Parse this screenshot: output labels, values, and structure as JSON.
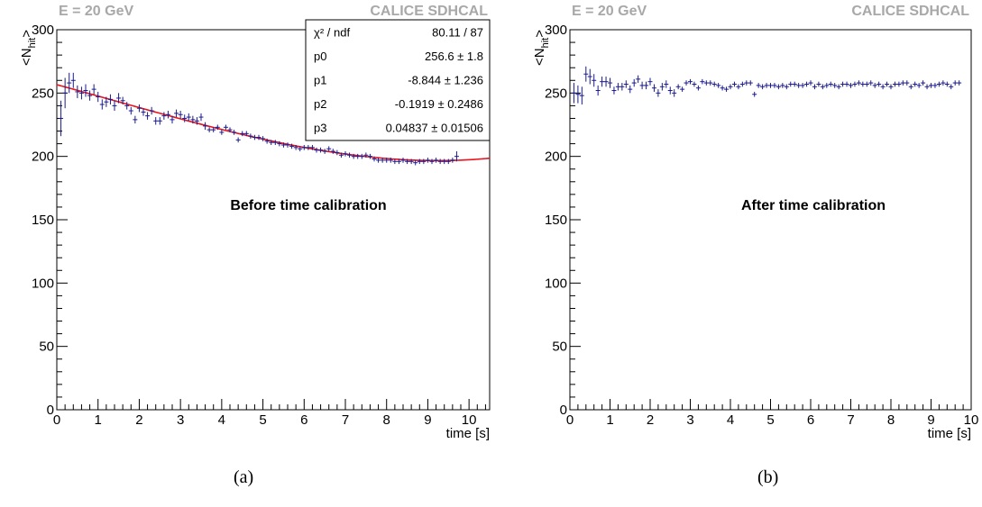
{
  "captions": [
    "(a)",
    "(b)"
  ],
  "chart_data": [
    {
      "type": "scatter",
      "header_left": "E = 20 GeV",
      "header_right": "CALICE SDHCAL",
      "xlabel": "time [s]",
      "ylabel_main": "<N",
      "ylabel_sub": "hit",
      "ylabel_end": ">",
      "xlim": [
        0,
        10.5
      ],
      "ylim": [
        0,
        300
      ],
      "xticks": [
        "0",
        "1",
        "2",
        "3",
        "4",
        "5",
        "6",
        "7",
        "8",
        "9",
        "10"
      ],
      "yticks": [
        "0",
        "50",
        "100",
        "150",
        "200",
        "250",
        "300"
      ],
      "annotation": "Before time calibration",
      "stats": [
        {
          "name": "χ² / ndf",
          "value": "80.11 / 87"
        },
        {
          "name": "p0",
          "value": "256.6 ± 1.8"
        },
        {
          "name": "p1",
          "value": "-8.844 ± 1.236"
        },
        {
          "name": "p2",
          "value": "-0.1919 ± 0.2486"
        },
        {
          "name": "p3",
          "value": "0.04837 ± 0.01506"
        }
      ],
      "fit": {
        "p0": 256.6,
        "p1": -8.844,
        "p2": -0.1919,
        "p3": 0.04837,
        "x_range": [
          0,
          10.5
        ],
        "color": "#e8151f"
      },
      "marker_color": "#1a1a8c",
      "series": [
        {
          "x": [
            0.1,
            0.2,
            0.3,
            0.4,
            0.5,
            0.6,
            0.7,
            0.8,
            0.9,
            1.0,
            1.1,
            1.2,
            1.3,
            1.4,
            1.5,
            1.6,
            1.7,
            1.8,
            1.9,
            2.0,
            2.1,
            2.2,
            2.3,
            2.4,
            2.5,
            2.6,
            2.7,
            2.8,
            2.9,
            3.0,
            3.1,
            3.2,
            3.3,
            3.4,
            3.5,
            3.6,
            3.7,
            3.8,
            3.9,
            4.0,
            4.1,
            4.2,
            4.3,
            4.4,
            4.5,
            4.6,
            4.7,
            4.8,
            4.9,
            5.0,
            5.1,
            5.2,
            5.3,
            5.4,
            5.5,
            5.6,
            5.7,
            5.8,
            5.9,
            6.0,
            6.1,
            6.2,
            6.3,
            6.4,
            6.5,
            6.6,
            6.7,
            6.8,
            6.9,
            7.0,
            7.1,
            7.2,
            7.3,
            7.4,
            7.5,
            7.6,
            7.7,
            7.8,
            7.9,
            8.0,
            8.1,
            8.2,
            8.3,
            8.4,
            8.5,
            8.6,
            8.7,
            8.8,
            8.9,
            9.0,
            9.1,
            9.2,
            9.3,
            9.4,
            9.5,
            9.6,
            9.7
          ],
          "y": [
            230,
            250,
            258,
            260,
            251,
            250,
            252,
            248,
            253,
            247,
            241,
            243,
            245,
            240,
            246,
            244,
            240,
            236,
            229,
            238,
            235,
            232,
            236,
            228,
            228,
            232,
            233,
            229,
            234,
            233,
            230,
            231,
            229,
            228,
            231,
            224,
            221,
            221,
            223,
            219,
            223,
            221,
            219,
            213,
            218,
            218,
            216,
            215,
            215,
            214,
            212,
            211,
            211,
            210,
            209,
            209,
            208,
            207,
            206,
            207,
            207,
            207,
            205,
            205,
            204,
            206,
            204,
            203,
            201,
            202,
            201,
            200,
            200,
            200,
            201,
            200,
            198,
            197,
            197,
            197,
            197,
            196,
            196,
            197,
            196,
            196,
            195,
            196,
            196,
            197,
            196,
            197,
            196,
            196,
            196,
            197,
            200
          ],
          "err": [
            14,
            12,
            8,
            6,
            5,
            5,
            5,
            4,
            4,
            4,
            4,
            4,
            4,
            4,
            4,
            3,
            3,
            3,
            3,
            3,
            3,
            3,
            3,
            3,
            3,
            3,
            3,
            3,
            3,
            3,
            3,
            3,
            3,
            3,
            3,
            3,
            2,
            2,
            2,
            2,
            2,
            2,
            2,
            2,
            2,
            2,
            2,
            2,
            2,
            2,
            2,
            2,
            2,
            2,
            2,
            2,
            2,
            2,
            2,
            2,
            2,
            2,
            2,
            2,
            2,
            2,
            2,
            2,
            2,
            2,
            2,
            2,
            2,
            2,
            2,
            2,
            2,
            2,
            2,
            2,
            2,
            2,
            2,
            2,
            2,
            2,
            2,
            2,
            2,
            2,
            2,
            2,
            2,
            2,
            2,
            2,
            4
          ]
        }
      ]
    },
    {
      "type": "scatter",
      "header_left": "E = 20 GeV",
      "header_right": "CALICE SDHCAL",
      "xlabel": "time [s]",
      "ylabel_main": "<N",
      "ylabel_sub": "hit",
      "ylabel_end": ">",
      "xlim": [
        0,
        10
      ],
      "ylim": [
        0,
        300
      ],
      "xticks": [
        "0",
        "1",
        "2",
        "3",
        "4",
        "5",
        "6",
        "7",
        "8",
        "9",
        "10"
      ],
      "yticks": [
        "0",
        "50",
        "100",
        "150",
        "200",
        "250",
        "300"
      ],
      "annotation": "After time calibration",
      "marker_color": "#1a1a8c",
      "series": [
        {
          "x": [
            0.1,
            0.2,
            0.3,
            0.4,
            0.5,
            0.6,
            0.7,
            0.8,
            0.9,
            1.0,
            1.1,
            1.2,
            1.3,
            1.4,
            1.5,
            1.6,
            1.7,
            1.8,
            1.9,
            2.0,
            2.1,
            2.2,
            2.3,
            2.4,
            2.5,
            2.6,
            2.7,
            2.8,
            2.9,
            3.0,
            3.1,
            3.2,
            3.3,
            3.4,
            3.5,
            3.6,
            3.7,
            3.8,
            3.9,
            4.0,
            4.1,
            4.2,
            4.3,
            4.4,
            4.5,
            4.6,
            4.7,
            4.8,
            4.9,
            5.0,
            5.1,
            5.2,
            5.3,
            5.4,
            5.5,
            5.6,
            5.7,
            5.8,
            5.9,
            6.0,
            6.1,
            6.2,
            6.3,
            6.4,
            6.5,
            6.6,
            6.7,
            6.8,
            6.9,
            7.0,
            7.1,
            7.2,
            7.3,
            7.4,
            7.5,
            7.6,
            7.7,
            7.8,
            7.9,
            8.0,
            8.1,
            8.2,
            8.3,
            8.4,
            8.5,
            8.6,
            8.7,
            8.8,
            8.9,
            9.0,
            9.1,
            9.2,
            9.3,
            9.4,
            9.5,
            9.6,
            9.7
          ],
          "y": [
            250,
            249,
            248,
            265,
            263,
            260,
            252,
            259,
            259,
            258,
            252,
            255,
            255,
            257,
            253,
            258,
            261,
            256,
            256,
            259,
            254,
            250,
            255,
            257,
            252,
            250,
            255,
            253,
            258,
            259,
            257,
            254,
            259,
            258,
            258,
            257,
            256,
            254,
            253,
            255,
            257,
            255,
            257,
            258,
            258,
            249,
            256,
            255,
            256,
            256,
            256,
            255,
            256,
            255,
            257,
            257,
            256,
            256,
            257,
            258,
            255,
            257,
            255,
            256,
            257,
            256,
            255,
            257,
            257,
            256,
            257,
            258,
            257,
            257,
            258,
            256,
            257,
            255,
            257,
            255,
            257,
            257,
            258,
            258,
            255,
            257,
            256,
            258,
            255,
            256,
            256,
            257,
            258,
            257,
            255,
            258,
            258
          ],
          "err": [
            8,
            7,
            7,
            6,
            6,
            5,
            4,
            4,
            4,
            4,
            3,
            3,
            3,
            3,
            3,
            3,
            3,
            3,
            3,
            3,
            3,
            3,
            3,
            3,
            3,
            3,
            2,
            2,
            2,
            2,
            2,
            2,
            2,
            2,
            2,
            2,
            2,
            2,
            2,
            2,
            2,
            2,
            2,
            2,
            2,
            2,
            2,
            2,
            2,
            2,
            2,
            2,
            2,
            2,
            2,
            2,
            2,
            2,
            2,
            2,
            2,
            2,
            2,
            2,
            2,
            2,
            2,
            2,
            2,
            2,
            2,
            2,
            2,
            2,
            2,
            2,
            2,
            2,
            2,
            2,
            2,
            2,
            2,
            2,
            2,
            2,
            2,
            2,
            2,
            2,
            2,
            2,
            2,
            2,
            2,
            2,
            2
          ]
        }
      ]
    }
  ]
}
